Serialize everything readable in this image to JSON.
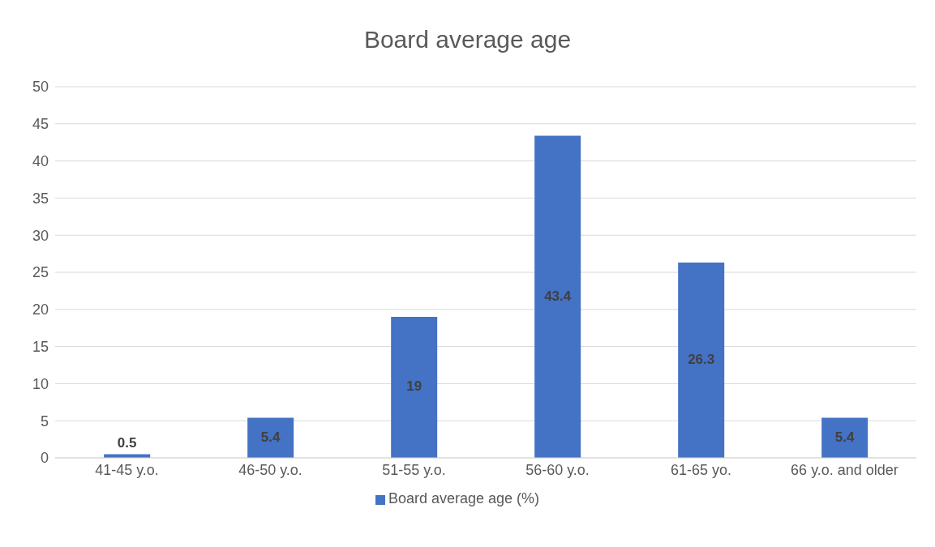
{
  "chart_data": {
    "type": "bar",
    "title": "Board average age",
    "categories": [
      "41-45 y.o.",
      "46-50 y.o.",
      "51-55 y.o.",
      "56-60 y.o.",
      "61-65 yo.",
      "66 y.o. and older"
    ],
    "series": [
      {
        "name": "Board average age (%)",
        "color": "#4472c4",
        "values": [
          0.5,
          5.4,
          19,
          43.4,
          26.3,
          5.4
        ]
      }
    ],
    "ylim": [
      0,
      50
    ],
    "yticks": [
      0,
      5,
      10,
      15,
      20,
      25,
      30,
      35,
      40,
      45,
      50
    ],
    "grid": "y",
    "legend": "bottom",
    "data_labels": true
  }
}
